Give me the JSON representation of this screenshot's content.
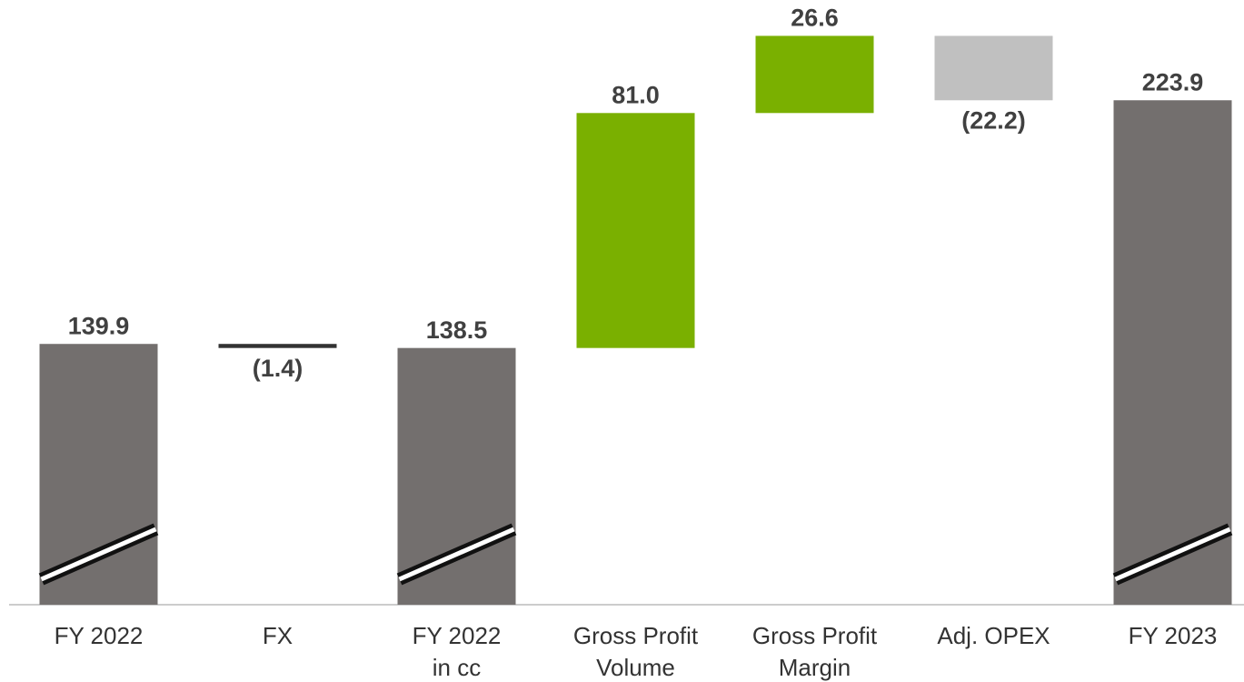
{
  "chart_data": {
    "type": "waterfall",
    "categories": [
      [
        "FY 2022"
      ],
      [
        "FX"
      ],
      [
        "FY 2022",
        "in cc"
      ],
      [
        "Gross Profit",
        "Volume"
      ],
      [
        "Gross Profit",
        "Margin"
      ],
      [
        "Adj. OPEX"
      ],
      [
        "FY 2023"
      ]
    ],
    "values": [
      139.9,
      -1.4,
      138.5,
      81.0,
      26.6,
      -22.2,
      223.9
    ],
    "value_labels": [
      "139.9",
      "(1.4)",
      "138.5",
      "81.0",
      "26.6",
      "(22.2)",
      "223.9"
    ],
    "totals": [
      true,
      false,
      true,
      false,
      false,
      false,
      true
    ],
    "colors": [
      "#736f6e",
      "#333333",
      "#736f6e",
      "#7ab000",
      "#7ab000",
      "#c0c0c0",
      "#736f6e"
    ],
    "ylim": [
      50,
      250
    ],
    "axis_break": true
  }
}
